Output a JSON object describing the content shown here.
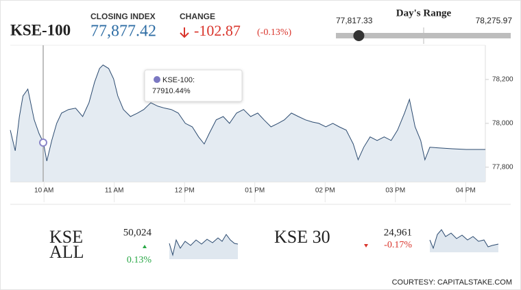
{
  "header": {
    "title": "KSE-100",
    "closing_label": "CLOSING INDEX",
    "closing_index": {
      "value": 77877.42,
      "label": "77,877.42"
    },
    "change_label": "CHANGE",
    "change": -102.87,
    "change_percent": "(-0.13%)",
    "day_range": {
      "title": "Day's Range",
      "low": {
        "value": 77817.33,
        "label": "77,817.33"
      },
      "high": {
        "value": 78275.97,
        "label": "78,275.97"
      }
    }
  },
  "tooltip": {
    "series": "KSE-100:",
    "value": "77910.44%"
  },
  "chart_data": {
    "type": "line",
    "color": "#2b4a6f",
    "fill": "#e4ebf2",
    "x": [
      9.52,
      9.59,
      9.65,
      9.7,
      9.77,
      9.81,
      9.86,
      9.93,
      9.99,
      10.04,
      10.11,
      10.18,
      10.25,
      10.35,
      10.45,
      10.55,
      10.64,
      10.72,
      10.79,
      10.84,
      10.92,
      10.99,
      11.05,
      11.13,
      11.23,
      11.33,
      11.42,
      11.52,
      11.62,
      11.72,
      11.81,
      11.91,
      12.01,
      12.11,
      12.2,
      12.28,
      12.35,
      12.45,
      12.55,
      12.64,
      12.74,
      12.84,
      12.94,
      13.04,
      13.13,
      13.23,
      13.33,
      13.42,
      13.52,
      13.62,
      13.72,
      13.82,
      13.91,
      14.01,
      14.11,
      14.2,
      14.3,
      14.4,
      14.47,
      14.55,
      14.64,
      14.74,
      14.84,
      14.94,
      15.03,
      15.13,
      15.2,
      15.28,
      15.36,
      15.42,
      15.49,
      15.62,
      15.81,
      16.01,
      16.28
    ],
    "values": [
      77969,
      77875,
      78031,
      78125,
      78156,
      78094,
      78016,
      77953,
      77913,
      77828,
      77922,
      78000,
      78047,
      78063,
      78069,
      78031,
      78094,
      78188,
      78250,
      78266,
      78250,
      78203,
      78125,
      78063,
      78031,
      78047,
      78063,
      78094,
      78078,
      78069,
      78063,
      78047,
      78000,
      77984,
      77938,
      77906,
      77953,
      78016,
      78031,
      78000,
      78047,
      78063,
      78031,
      78047,
      78016,
      77984,
      78000,
      78016,
      78047,
      78031,
      78016,
      78006,
      78000,
      77984,
      78000,
      77984,
      77969,
      77906,
      77834,
      77891,
      77938,
      77922,
      77938,
      77922,
      77969,
      78047,
      78109,
      77984,
      77922,
      77834,
      77891,
      77888,
      77884,
      77881,
      77881
    ],
    "xlim": [
      9.52,
      16.28
    ],
    "ylim": [
      77734,
      78356
    ],
    "xticks": [
      {
        "value": 10,
        "label": "10 AM"
      },
      {
        "value": 11,
        "label": "11 AM"
      },
      {
        "value": 12,
        "label": "12 PM"
      },
      {
        "value": 13,
        "label": "01 PM"
      },
      {
        "value": 14,
        "label": "02 PM"
      },
      {
        "value": 15,
        "label": "03 PM"
      },
      {
        "value": 16,
        "label": "04 PM"
      }
    ],
    "yticks": [
      {
        "value": 77800,
        "label": "77,800"
      },
      {
        "value": 78000,
        "label": "78,000"
      },
      {
        "value": 78200,
        "label": "78,200"
      }
    ],
    "grid": false
  },
  "indices": [
    {
      "name": "KSE ALL",
      "value": "50,024",
      "change": "0.13%",
      "direction": "up"
    },
    {
      "name": "KSE 30",
      "value": "24,961",
      "change": "-0.17%",
      "direction": "down"
    }
  ],
  "footer": "COURTESY: CAPITALSTAKE.COM"
}
